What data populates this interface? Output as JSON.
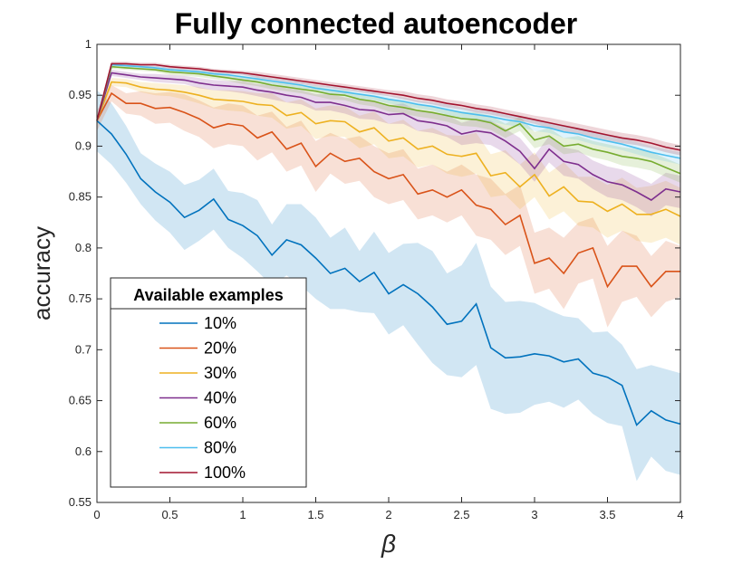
{
  "chart_data": {
    "type": "line",
    "title": "Fully connected autoencoder",
    "xlabel": "β",
    "ylabel": "accuracy",
    "xlim": [
      0,
      4
    ],
    "ylim": [
      0.55,
      1
    ],
    "xticks": [
      "0",
      "0.5",
      "1",
      "1.5",
      "2",
      "2.5",
      "3",
      "3.5",
      "4"
    ],
    "yticks": [
      "0.55",
      "0.6",
      "0.65",
      "0.7",
      "0.75",
      "0.8",
      "0.85",
      "0.9",
      "0.95",
      "1"
    ],
    "grid": false,
    "legend": {
      "title": "Available examples",
      "placement": "bottom-left"
    },
    "x": [
      0,
      0.1,
      0.2,
      0.3,
      0.4,
      0.5,
      0.6,
      0.7,
      0.8,
      0.9,
      1.0,
      1.1,
      1.2,
      1.3,
      1.4,
      1.5,
      1.6,
      1.7,
      1.8,
      1.9,
      2.0,
      2.1,
      2.2,
      2.3,
      2.4,
      2.5,
      2.6,
      2.7,
      2.8,
      2.9,
      3.0,
      3.1,
      3.2,
      3.3,
      3.4,
      3.5,
      3.6,
      3.7,
      3.8,
      3.9,
      4.0
    ],
    "series": [
      {
        "name": "10%",
        "color": "#0072BD",
        "values": [
          0.925,
          0.912,
          0.892,
          0.868,
          0.855,
          0.845,
          0.83,
          0.837,
          0.848,
          0.828,
          0.822,
          0.812,
          0.793,
          0.808,
          0.803,
          0.79,
          0.775,
          0.78,
          0.767,
          0.776,
          0.755,
          0.764,
          0.755,
          0.742,
          0.725,
          0.728,
          0.745,
          0.702,
          0.692,
          0.693,
          0.696,
          0.694,
          0.688,
          0.691,
          0.677,
          0.673,
          0.665,
          0.626,
          0.64,
          0.631,
          0.627
        ],
        "band": [
          0.03,
          0.03,
          0.028,
          0.025,
          0.028,
          0.03,
          0.032,
          0.03,
          0.03,
          0.028,
          0.032,
          0.035,
          0.03,
          0.035,
          0.04,
          0.04,
          0.035,
          0.04,
          0.03,
          0.04,
          0.04,
          0.04,
          0.05,
          0.055,
          0.05,
          0.055,
          0.06,
          0.06,
          0.055,
          0.055,
          0.05,
          0.045,
          0.045,
          0.04,
          0.04,
          0.045,
          0.04,
          0.055,
          0.045,
          0.05,
          0.05
        ]
      },
      {
        "name": "20%",
        "color": "#D95319",
        "values": [
          0.925,
          0.952,
          0.942,
          0.942,
          0.937,
          0.938,
          0.933,
          0.927,
          0.918,
          0.922,
          0.92,
          0.908,
          0.914,
          0.897,
          0.903,
          0.88,
          0.893,
          0.885,
          0.888,
          0.875,
          0.868,
          0.872,
          0.853,
          0.857,
          0.85,
          0.857,
          0.842,
          0.838,
          0.823,
          0.832,
          0.785,
          0.79,
          0.775,
          0.795,
          0.8,
          0.762,
          0.782,
          0.782,
          0.762,
          0.777,
          0.777
        ],
        "band": [
          0.01,
          0.008,
          0.01,
          0.012,
          0.015,
          0.015,
          0.018,
          0.018,
          0.02,
          0.02,
          0.02,
          0.022,
          0.02,
          0.022,
          0.022,
          0.025,
          0.02,
          0.022,
          0.022,
          0.025,
          0.025,
          0.025,
          0.025,
          0.025,
          0.025,
          0.025,
          0.03,
          0.03,
          0.03,
          0.03,
          0.03,
          0.03,
          0.035,
          0.03,
          0.03,
          0.04,
          0.035,
          0.03,
          0.03,
          0.03,
          0.025
        ]
      },
      {
        "name": "30%",
        "color": "#EDB120",
        "values": [
          0.925,
          0.963,
          0.962,
          0.958,
          0.956,
          0.955,
          0.953,
          0.95,
          0.946,
          0.945,
          0.944,
          0.941,
          0.94,
          0.93,
          0.933,
          0.922,
          0.925,
          0.924,
          0.914,
          0.918,
          0.905,
          0.908,
          0.897,
          0.9,
          0.892,
          0.89,
          0.893,
          0.871,
          0.874,
          0.86,
          0.872,
          0.851,
          0.86,
          0.846,
          0.845,
          0.836,
          0.843,
          0.833,
          0.833,
          0.838,
          0.831
        ],
        "band": [
          0.005,
          0.004,
          0.004,
          0.005,
          0.006,
          0.006,
          0.007,
          0.008,
          0.009,
          0.01,
          0.01,
          0.011,
          0.012,
          0.013,
          0.013,
          0.015,
          0.015,
          0.015,
          0.016,
          0.016,
          0.017,
          0.018,
          0.018,
          0.018,
          0.019,
          0.02,
          0.02,
          0.021,
          0.022,
          0.022,
          0.022,
          0.023,
          0.024,
          0.024,
          0.025,
          0.026,
          0.026,
          0.026,
          0.028,
          0.028,
          0.028
        ]
      },
      {
        "name": "40%",
        "color": "#7E2F8E",
        "values": [
          0.925,
          0.972,
          0.97,
          0.968,
          0.967,
          0.966,
          0.965,
          0.962,
          0.96,
          0.959,
          0.958,
          0.955,
          0.953,
          0.95,
          0.948,
          0.943,
          0.943,
          0.94,
          0.936,
          0.935,
          0.931,
          0.932,
          0.925,
          0.923,
          0.92,
          0.912,
          0.915,
          0.913,
          0.905,
          0.895,
          0.878,
          0.897,
          0.885,
          0.882,
          0.872,
          0.865,
          0.862,
          0.855,
          0.847,
          0.858,
          0.855
        ],
        "band": [
          0.004,
          0.003,
          0.003,
          0.003,
          0.004,
          0.004,
          0.004,
          0.005,
          0.005,
          0.005,
          0.006,
          0.006,
          0.007,
          0.007,
          0.007,
          0.008,
          0.008,
          0.008,
          0.009,
          0.009,
          0.009,
          0.01,
          0.01,
          0.01,
          0.011,
          0.011,
          0.012,
          0.012,
          0.012,
          0.013,
          0.013,
          0.013,
          0.014,
          0.014,
          0.014,
          0.015,
          0.015,
          0.015,
          0.016,
          0.016,
          0.016
        ]
      },
      {
        "name": "60%",
        "color": "#77AC30",
        "values": [
          0.925,
          0.978,
          0.977,
          0.976,
          0.975,
          0.973,
          0.972,
          0.971,
          0.969,
          0.967,
          0.965,
          0.963,
          0.96,
          0.958,
          0.956,
          0.954,
          0.951,
          0.95,
          0.946,
          0.944,
          0.94,
          0.938,
          0.935,
          0.933,
          0.93,
          0.927,
          0.926,
          0.923,
          0.915,
          0.922,
          0.906,
          0.91,
          0.9,
          0.902,
          0.897,
          0.894,
          0.89,
          0.888,
          0.885,
          0.879,
          0.873
        ],
        "band": [
          0.003,
          0.002,
          0.002,
          0.002,
          0.002,
          0.003,
          0.003,
          0.003,
          0.003,
          0.003,
          0.004,
          0.004,
          0.004,
          0.004,
          0.004,
          0.005,
          0.005,
          0.005,
          0.005,
          0.005,
          0.006,
          0.006,
          0.006,
          0.006,
          0.006,
          0.007,
          0.007,
          0.007,
          0.007,
          0.007,
          0.008,
          0.008,
          0.008,
          0.008,
          0.008,
          0.008,
          0.009,
          0.009,
          0.009,
          0.009,
          0.009
        ]
      },
      {
        "name": "80%",
        "color": "#4DBEEE",
        "values": [
          0.925,
          0.98,
          0.979,
          0.978,
          0.977,
          0.975,
          0.974,
          0.973,
          0.971,
          0.97,
          0.968,
          0.966,
          0.964,
          0.962,
          0.96,
          0.957,
          0.955,
          0.953,
          0.951,
          0.949,
          0.946,
          0.944,
          0.941,
          0.939,
          0.936,
          0.933,
          0.931,
          0.929,
          0.926,
          0.924,
          0.92,
          0.918,
          0.914,
          0.912,
          0.908,
          0.905,
          0.902,
          0.898,
          0.894,
          0.891,
          0.888
        ],
        "band": [
          0.002,
          0.002,
          0.002,
          0.002,
          0.002,
          0.002,
          0.002,
          0.002,
          0.003,
          0.003,
          0.003,
          0.003,
          0.003,
          0.003,
          0.003,
          0.003,
          0.004,
          0.004,
          0.004,
          0.004,
          0.004,
          0.004,
          0.004,
          0.004,
          0.005,
          0.005,
          0.005,
          0.005,
          0.005,
          0.005,
          0.005,
          0.005,
          0.006,
          0.006,
          0.006,
          0.006,
          0.006,
          0.006,
          0.006,
          0.006,
          0.006
        ]
      },
      {
        "name": "100%",
        "color": "#A2142F",
        "values": [
          0.925,
          0.981,
          0.981,
          0.98,
          0.98,
          0.978,
          0.977,
          0.976,
          0.974,
          0.973,
          0.972,
          0.97,
          0.968,
          0.966,
          0.964,
          0.962,
          0.96,
          0.958,
          0.956,
          0.954,
          0.952,
          0.95,
          0.947,
          0.945,
          0.942,
          0.94,
          0.937,
          0.935,
          0.932,
          0.929,
          0.926,
          0.923,
          0.92,
          0.917,
          0.914,
          0.911,
          0.908,
          0.906,
          0.903,
          0.899,
          0.896
        ],
        "band": [
          0.002,
          0.002,
          0.002,
          0.002,
          0.002,
          0.002,
          0.002,
          0.002,
          0.002,
          0.002,
          0.002,
          0.003,
          0.003,
          0.003,
          0.003,
          0.003,
          0.003,
          0.003,
          0.003,
          0.003,
          0.003,
          0.004,
          0.004,
          0.004,
          0.004,
          0.004,
          0.004,
          0.004,
          0.004,
          0.004,
          0.004,
          0.005,
          0.005,
          0.005,
          0.005,
          0.005,
          0.005,
          0.005,
          0.005,
          0.005,
          0.005
        ]
      }
    ]
  }
}
